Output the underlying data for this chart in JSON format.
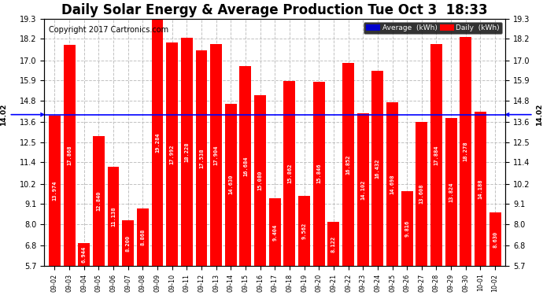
{
  "title": "Daily Solar Energy & Average Production Tue Oct 3  18:33",
  "copyright": "Copyright 2017 Cartronics.com",
  "categories": [
    "09-02",
    "09-03",
    "09-04",
    "09-05",
    "09-06",
    "09-07",
    "09-08",
    "09-09",
    "09-10",
    "09-11",
    "09-12",
    "09-13",
    "09-14",
    "09-15",
    "09-16",
    "09-17",
    "09-18",
    "09-19",
    "09-20",
    "09-21",
    "09-22",
    "09-23",
    "09-24",
    "09-25",
    "09-26",
    "09-27",
    "09-28",
    "09-29",
    "09-30",
    "10-01",
    "10-02"
  ],
  "values": [
    13.974,
    17.868,
    6.944,
    12.84,
    11.138,
    8.2,
    8.868,
    19.284,
    17.992,
    18.228,
    17.538,
    17.904,
    14.63,
    16.684,
    15.08,
    9.404,
    15.862,
    9.562,
    15.846,
    8.122,
    16.852,
    14.102,
    16.432,
    14.698,
    9.816,
    13.608,
    17.884,
    13.824,
    18.278,
    14.188,
    8.63
  ],
  "average": 14.02,
  "bar_color": "#ff0000",
  "average_line_color": "#0000ff",
  "background_color": "#ffffff",
  "plot_bg_color": "#ffffff",
  "grid_color": "#bbbbbb",
  "ylim_min": 5.7,
  "ylim_max": 19.3,
  "yticks": [
    5.7,
    6.8,
    8.0,
    9.1,
    10.2,
    11.4,
    12.5,
    13.6,
    14.8,
    15.9,
    17.0,
    18.2,
    19.3
  ],
  "title_fontsize": 12,
  "copyright_fontsize": 7,
  "tick_fontsize": 7,
  "bar_label_fontsize": 5,
  "legend_avg_color": "#0000cc",
  "legend_daily_color": "#ff0000",
  "legend_avg_text": "Average  (kWh)",
  "legend_daily_text": "Daily  (kWh)"
}
